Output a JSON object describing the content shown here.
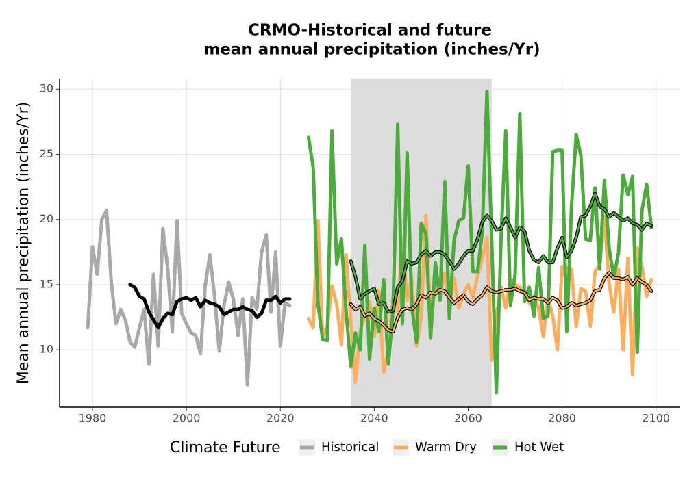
{
  "chart_data": {
    "type": "line",
    "title": [
      "CRMO-Historical and future",
      "mean annual precipitation (inches/Yr)"
    ],
    "y_label": "Mean annual precipitation (inches/Yr)",
    "legend_title": "Climate Future",
    "legend_position": "bottom",
    "grid": true,
    "xlim": [
      1973,
      2105
    ],
    "xticks": [
      1980,
      2000,
      2020,
      2040,
      2060,
      2080,
      2100
    ],
    "ylim": [
      5.6,
      30.8
    ],
    "yticks": [
      10,
      15,
      20,
      25,
      30
    ],
    "shaded_range": [
      2035,
      2065
    ],
    "shade_color": "#dcdcdc",
    "series": [
      {
        "name": "Historical",
        "color": "#a9a9a9",
        "smooth_color": "#000000",
        "x": [
          1979,
          1980,
          1981,
          1982,
          1983,
          1984,
          1985,
          1986,
          1987,
          1988,
          1989,
          1990,
          1991,
          1992,
          1993,
          1994,
          1995,
          1996,
          1997,
          1998,
          1999,
          2000,
          2001,
          2002,
          2003,
          2004,
          2005,
          2006,
          2007,
          2008,
          2009,
          2010,
          2011,
          2012,
          2013,
          2014,
          2015,
          2016,
          2017,
          2018,
          2019,
          2020,
          2021,
          2022
        ],
        "values": [
          11.7,
          17.9,
          15.8,
          20,
          20.7,
          15.2,
          12,
          13.1,
          12.3,
          10.6,
          10.2,
          11.7,
          13.1,
          8.9,
          15.8,
          10.3,
          19.3,
          16.3,
          11.4,
          19.9,
          12.8,
          12,
          11.3,
          11.1,
          9.7,
          14.9,
          17.3,
          14.1,
          9.9,
          13.4,
          15.2,
          13.9,
          11.1,
          13.9,
          7.3,
          14,
          13.1,
          17.5,
          18.8,
          12.9,
          17.5,
          10.3,
          13.6,
          13.4
        ],
        "smooth_x": [
          1988,
          1989,
          1990,
          1991,
          1992,
          1993,
          1994,
          1995,
          1996,
          1997,
          1998,
          1999,
          2000,
          2001,
          2002,
          2003,
          2004,
          2005,
          2006,
          2007,
          2008,
          2009,
          2010,
          2011,
          2012,
          2013,
          2014,
          2015,
          2016,
          2017,
          2018,
          2019,
          2020,
          2021,
          2022
        ],
        "smooth_values": [
          15,
          14.8,
          14.1,
          13.9,
          12.9,
          12.3,
          11.7,
          12.4,
          12.8,
          12.7,
          13.7,
          13.9,
          14,
          13.8,
          14,
          13.3,
          13.8,
          13.6,
          13.5,
          13.3,
          12.7,
          12.9,
          13.1,
          13.1,
          13.3,
          13.1,
          13,
          12.5,
          12.8,
          13.8,
          13.8,
          14.1,
          13.6,
          13.9,
          13.9
        ]
      },
      {
        "name": "Warm Dry",
        "color": "#fdae61",
        "smooth_color": "#fdae61",
        "x": [
          2026,
          2027,
          2028,
          2029,
          2030,
          2031,
          2032,
          2033,
          2034,
          2035,
          2036,
          2037,
          2038,
          2039,
          2040,
          2041,
          2042,
          2043,
          2044,
          2045,
          2046,
          2047,
          2048,
          2049,
          2050,
          2051,
          2052,
          2053,
          2054,
          2055,
          2056,
          2057,
          2058,
          2059,
          2060,
          2061,
          2062,
          2063,
          2064,
          2065,
          2066,
          2067,
          2068,
          2069,
          2070,
          2071,
          2072,
          2073,
          2074,
          2075,
          2076,
          2077,
          2078,
          2079,
          2080,
          2081,
          2082,
          2083,
          2084,
          2085,
          2086,
          2087,
          2088,
          2089,
          2090,
          2091,
          2092,
          2093,
          2094,
          2095,
          2096,
          2097,
          2098,
          2099
        ],
        "values": [
          12.4,
          11.7,
          19.9,
          11,
          11.8,
          14.9,
          13.5,
          10.4,
          17.3,
          12.3,
          7.5,
          11.4,
          12.6,
          13.7,
          11,
          14.5,
          8.3,
          9.8,
          14.1,
          12.9,
          18.5,
          13.8,
          15.5,
          10.3,
          12.5,
          20.3,
          12.2,
          14.6,
          14.2,
          15.9,
          13.1,
          15.5,
          13.2,
          14.3,
          15,
          14,
          15.7,
          17,
          18.6,
          9.2,
          12.6,
          14.8,
          13.2,
          15.4,
          15,
          14.8,
          14.4,
          13.6,
          14.1,
          13.2,
          11,
          14,
          12.6,
          10,
          16.4,
          16.3,
          16.2,
          11.8,
          14.7,
          14.5,
          11.8,
          16,
          16.5,
          20.2,
          15.1,
          12.9,
          16.2,
          10,
          17,
          8.1,
          17.8,
          16.4,
          14.1,
          15.4
        ],
        "smooth_x": [
          2035,
          2036,
          2037,
          2038,
          2039,
          2040,
          2041,
          2042,
          2043,
          2044,
          2045,
          2046,
          2047,
          2048,
          2049,
          2050,
          2051,
          2052,
          2053,
          2054,
          2055,
          2056,
          2057,
          2058,
          2059,
          2060,
          2061,
          2062,
          2063,
          2064,
          2065,
          2066,
          2067,
          2068,
          2069,
          2070,
          2071,
          2072,
          2073,
          2074,
          2075,
          2076,
          2077,
          2078,
          2079,
          2080,
          2081,
          2082,
          2083,
          2084,
          2085,
          2086,
          2087,
          2088,
          2089,
          2090,
          2091,
          2092,
          2093,
          2094,
          2095,
          2096,
          2097,
          2098,
          2099
        ],
        "smooth_values": [
          13.5,
          13.1,
          13.3,
          12.6,
          12.8,
          12.4,
          12.2,
          11.9,
          11.5,
          11.4,
          12.5,
          13.1,
          13.2,
          13.1,
          13.5,
          14.2,
          14,
          14.4,
          14.3,
          14.6,
          14.5,
          14,
          13.6,
          13.9,
          14.2,
          13.7,
          13.5,
          13.9,
          14.2,
          14.8,
          14.5,
          14.4,
          14.5,
          14.6,
          14.6,
          14.7,
          14.5,
          14.4,
          13.8,
          14,
          13.9,
          13.9,
          13.6,
          14,
          13.8,
          13.2,
          13.3,
          13.6,
          13.4,
          13.5,
          13.6,
          13.8,
          14.5,
          14.6,
          15.5,
          15.9,
          15.5,
          15.5,
          15.4,
          15.6,
          15,
          15.5,
          15.2,
          15,
          14.5
        ]
      },
      {
        "name": "Hot Wet",
        "color": "#4daa3c",
        "smooth_color": "#4daa3c",
        "x": [
          2026,
          2027,
          2028,
          2029,
          2030,
          2031,
          2032,
          2033,
          2034,
          2035,
          2036,
          2037,
          2038,
          2039,
          2040,
          2041,
          2042,
          2043,
          2044,
          2045,
          2046,
          2047,
          2048,
          2049,
          2050,
          2051,
          2052,
          2053,
          2054,
          2055,
          2056,
          2057,
          2058,
          2059,
          2060,
          2061,
          2062,
          2063,
          2064,
          2065,
          2066,
          2067,
          2068,
          2069,
          2070,
          2071,
          2072,
          2073,
          2074,
          2075,
          2076,
          2077,
          2078,
          2079,
          2080,
          2081,
          2082,
          2083,
          2084,
          2085,
          2086,
          2087,
          2088,
          2089,
          2090,
          2091,
          2092,
          2093,
          2094,
          2095,
          2096,
          2097,
          2098,
          2099
        ],
        "values": [
          26.3,
          24,
          13.6,
          10.8,
          10.7,
          26.8,
          16.6,
          18.5,
          13,
          8.7,
          11.3,
          10,
          18,
          9.3,
          13.2,
          11.4,
          15.4,
          8.9,
          13,
          27.3,
          12,
          25.1,
          13.3,
          10.6,
          19.7,
          18.9,
          10.9,
          16.7,
          13.8,
          22.9,
          12.4,
          18.4,
          19.9,
          20.1,
          24.1,
          16,
          16,
          19,
          29.8,
          18.5,
          6.7,
          18.5,
          26.8,
          13.4,
          15.8,
          28.1,
          13.7,
          14.8,
          12.6,
          16.3,
          12.4,
          12.6,
          25.2,
          25.3,
          25.3,
          11.4,
          21,
          26.5,
          24.9,
          18.5,
          18.4,
          22.4,
          16.2,
          23,
          17.8,
          15.6,
          17.4,
          23.4,
          21.9,
          23.3,
          9.8,
          20.7,
          22.7,
          19.4
        ],
        "smooth_x": [
          2035,
          2036,
          2037,
          2038,
          2039,
          2040,
          2041,
          2042,
          2043,
          2044,
          2045,
          2046,
          2047,
          2048,
          2049,
          2050,
          2051,
          2052,
          2053,
          2054,
          2055,
          2056,
          2057,
          2058,
          2059,
          2060,
          2061,
          2062,
          2063,
          2064,
          2065,
          2066,
          2067,
          2068,
          2069,
          2070,
          2071,
          2072,
          2073,
          2074,
          2075,
          2076,
          2077,
          2078,
          2079,
          2080,
          2081,
          2082,
          2083,
          2084,
          2085,
          2086,
          2087,
          2088,
          2089,
          2090,
          2091,
          2092,
          2093,
          2094,
          2095,
          2096,
          2097,
          2098,
          2099
        ],
        "smooth_values": [
          16.8,
          15.6,
          13.9,
          14.3,
          14.5,
          14.7,
          13.5,
          13.6,
          12.9,
          13,
          14.8,
          15.3,
          16.8,
          16.6,
          16.7,
          17.3,
          17.6,
          17.2,
          17.5,
          17.5,
          17.3,
          16.8,
          16.2,
          16.6,
          17.2,
          17.6,
          17.6,
          18.5,
          19.8,
          20.3,
          19.9,
          19.2,
          19.3,
          20.1,
          19.4,
          18.6,
          19.4,
          19.1,
          17.6,
          16.9,
          16.7,
          17.2,
          16.7,
          16.7,
          17.8,
          18.6,
          17.1,
          17.6,
          18.6,
          20.2,
          20.3,
          21,
          22,
          21,
          20.8,
          20.2,
          20.5,
          20.2,
          19.9,
          20.1,
          19.7,
          19.6,
          19.2,
          19.7,
          19.5
        ]
      }
    ]
  }
}
